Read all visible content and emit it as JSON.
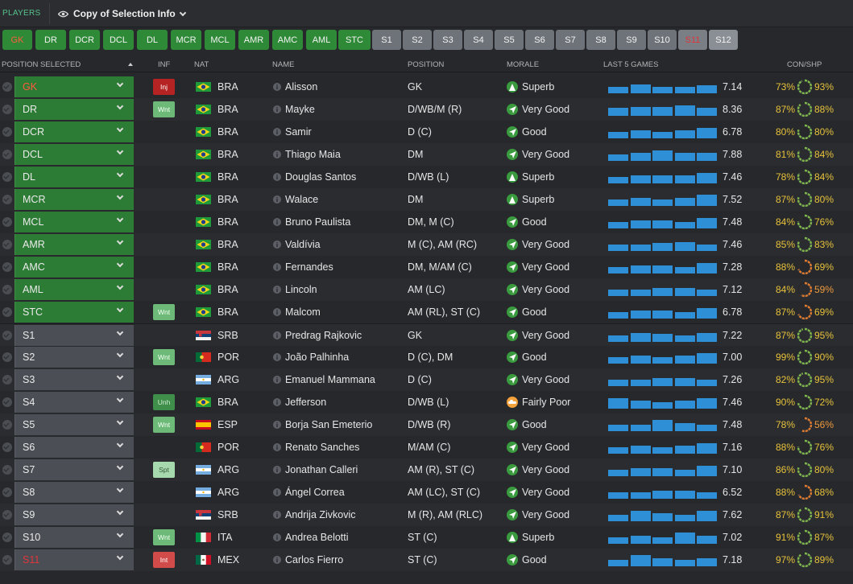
{
  "top": {
    "section": "PLAYERS",
    "view": "Copy of Selection Info"
  },
  "position_buttons": [
    {
      "label": "GK",
      "kind": "g",
      "selected": true
    },
    {
      "label": "DR",
      "kind": "g"
    },
    {
      "label": "DCR",
      "kind": "g"
    },
    {
      "label": "DCL",
      "kind": "g"
    },
    {
      "label": "DL",
      "kind": "g"
    },
    {
      "label": "MCR",
      "kind": "g"
    },
    {
      "label": "MCL",
      "kind": "g"
    },
    {
      "label": "AMR",
      "kind": "g"
    },
    {
      "label": "AMC",
      "kind": "g"
    },
    {
      "label": "AML",
      "kind": "g"
    },
    {
      "label": "STC",
      "kind": "g"
    },
    {
      "label": "S1",
      "kind": "s"
    },
    {
      "label": "S2",
      "kind": "s"
    },
    {
      "label": "S3",
      "kind": "s"
    },
    {
      "label": "S4",
      "kind": "s"
    },
    {
      "label": "S5",
      "kind": "s"
    },
    {
      "label": "S6",
      "kind": "s"
    },
    {
      "label": "S7",
      "kind": "s"
    },
    {
      "label": "S8",
      "kind": "s"
    },
    {
      "label": "S9",
      "kind": "s"
    },
    {
      "label": "S10",
      "kind": "s"
    },
    {
      "label": "S11",
      "kind": "s",
      "selected": true
    },
    {
      "label": "S12",
      "kind": "s",
      "dark": true
    }
  ],
  "columns": {
    "position": "POSITION SELECTED",
    "inf": "INF",
    "nat": "NAT",
    "name": "NAME",
    "pos": "POSITION",
    "morale": "MORALE",
    "last5": "LAST 5 GAMES",
    "conshp": "CON/SHP"
  },
  "colors": {
    "green": "#2f8a38",
    "sub": "#6e737a",
    "bar": "#2e8fd6",
    "ring_green": "#7fb84a",
    "ring_orange": "#e07b2e"
  },
  "players": [
    {
      "slot": "GK",
      "kind": "g",
      "red": true,
      "inf": "Inj",
      "inf_type": "inj",
      "flag": "bra",
      "nat": "BRA",
      "name": "Alisson",
      "pos": "GK",
      "morale": "Superb",
      "morale_icon": "superb",
      "last5": [
        6.6,
        7.2,
        6.9,
        7.0,
        7.1
      ],
      "avg": "7.14",
      "con": "73%",
      "con_tone": "yel",
      "shp": "93%",
      "shp_val": 0.93
    },
    {
      "slot": "DR",
      "kind": "g",
      "inf": "Wnt",
      "inf_type": "wnt",
      "flag": "bra",
      "nat": "BRA",
      "name": "Mayke",
      "pos": "D/WB/M (R)",
      "morale": "Very Good",
      "morale_icon": "good",
      "last5": [
        7.1,
        7.2,
        7.2,
        7.3,
        7.1
      ],
      "avg": "8.36",
      "con": "87%",
      "con_tone": "yel",
      "shp": "88%",
      "shp_val": 0.88
    },
    {
      "slot": "DCR",
      "kind": "g",
      "inf": "",
      "flag": "bra",
      "nat": "BRA",
      "name": "Samir",
      "pos": "D (C)",
      "morale": "Good",
      "morale_icon": "good",
      "last5": [
        7.0,
        7.1,
        7.0,
        7.1,
        7.3
      ],
      "avg": "6.78",
      "con": "80%",
      "con_tone": "yel",
      "shp": "80%",
      "shp_val": 0.8
    },
    {
      "slot": "DCL",
      "kind": "g",
      "inf": "",
      "flag": "bra",
      "nat": "BRA",
      "name": "Thiago Maia",
      "pos": "DM",
      "morale": "Very Good",
      "morale_icon": "good",
      "last5": [
        7.0,
        7.1,
        7.3,
        7.1,
        7.1
      ],
      "avg": "7.88",
      "con": "81%",
      "con_tone": "yel",
      "shp": "84%",
      "shp_val": 0.84
    },
    {
      "slot": "DL",
      "kind": "g",
      "inf": "",
      "flag": "bra",
      "nat": "BRA",
      "name": "Douglas Santos",
      "pos": "D/WB (L)",
      "morale": "Superb",
      "morale_icon": "superb",
      "last5": [
        7.0,
        7.1,
        7.1,
        7.1,
        7.3
      ],
      "avg": "7.46",
      "con": "78%",
      "con_tone": "yel",
      "shp": "84%",
      "shp_val": 0.84
    },
    {
      "slot": "MCR",
      "kind": "g",
      "inf": "",
      "flag": "bra",
      "nat": "BRA",
      "name": "Walace",
      "pos": "DM",
      "morale": "Superb",
      "morale_icon": "superb",
      "last5": [
        7.0,
        7.1,
        7.0,
        7.1,
        7.4
      ],
      "avg": "7.52",
      "con": "87%",
      "con_tone": "yel",
      "shp": "80%",
      "shp_val": 0.8
    },
    {
      "slot": "MCL",
      "kind": "g",
      "inf": "",
      "flag": "bra",
      "nat": "BRA",
      "name": "Bruno Paulista",
      "pos": "DM, M (C)",
      "morale": "Good",
      "morale_icon": "good",
      "last5": [
        7.0,
        7.1,
        7.1,
        7.0,
        7.3
      ],
      "avg": "7.48",
      "con": "84%",
      "con_tone": "yel",
      "shp": "76%",
      "shp_val": 0.76
    },
    {
      "slot": "AMR",
      "kind": "g",
      "inf": "",
      "flag": "bra",
      "nat": "BRA",
      "name": "Valdívia",
      "pos": "M (C), AM (RC)",
      "morale": "Very Good",
      "morale_icon": "good",
      "last5": [
        7.0,
        7.0,
        7.1,
        7.2,
        7.0
      ],
      "avg": "7.46",
      "con": "85%",
      "con_tone": "yel",
      "shp": "83%",
      "shp_val": 0.83
    },
    {
      "slot": "AMC",
      "kind": "g",
      "inf": "",
      "flag": "bra",
      "nat": "BRA",
      "name": "Fernandes",
      "pos": "DM, M/AM (C)",
      "morale": "Very Good",
      "morale_icon": "good",
      "last5": [
        7.0,
        7.1,
        7.1,
        7.0,
        7.3
      ],
      "avg": "7.28",
      "con": "88%",
      "con_tone": "yel",
      "shp": "69%",
      "shp_val": 0.69
    },
    {
      "slot": "AML",
      "kind": "g",
      "inf": "",
      "flag": "bra",
      "nat": "BRA",
      "name": "Lincoln",
      "pos": "AM (LC)",
      "morale": "Very Good",
      "morale_icon": "good",
      "last5": [
        7.0,
        7.0,
        7.1,
        7.1,
        7.0
      ],
      "avg": "7.12",
      "con": "84%",
      "con_tone": "yel",
      "shp": "59%",
      "shp_val": 0.59,
      "shp_tone": "ora"
    },
    {
      "slot": "STC",
      "kind": "g",
      "inf": "Wnt",
      "inf_type": "wnt",
      "flag": "bra",
      "nat": "BRA",
      "name": "Malcom",
      "pos": "AM (RL), ST (C)",
      "morale": "Good",
      "morale_icon": "good",
      "last5": [
        7.0,
        7.1,
        7.1,
        7.0,
        7.3
      ],
      "avg": "6.78",
      "con": "87%",
      "con_tone": "yel",
      "shp": "69%",
      "shp_val": 0.69
    },
    {
      "slot": "S1",
      "kind": "s",
      "inf": "",
      "flag": "srb",
      "nat": "SRB",
      "name": "Predrag Rajkovic",
      "pos": "GK",
      "morale": "Very Good",
      "morale_icon": "good",
      "last5": [
        7.0,
        7.2,
        7.1,
        7.0,
        7.2
      ],
      "avg": "7.22",
      "con": "87%",
      "con_tone": "yel",
      "shp": "95%",
      "shp_val": 0.95
    },
    {
      "slot": "S2",
      "kind": "s",
      "inf": "Wnt",
      "inf_type": "wnt",
      "flag": "por",
      "nat": "POR",
      "name": "João Palhinha",
      "pos": "D (C), DM",
      "morale": "Good",
      "morale_icon": "good",
      "last5": [
        7.0,
        7.1,
        7.0,
        7.1,
        7.3
      ],
      "avg": "7.00",
      "con": "99%",
      "con_tone": "yel",
      "shp": "90%",
      "shp_val": 0.9
    },
    {
      "slot": "S3",
      "kind": "s",
      "inf": "",
      "flag": "arg",
      "nat": "ARG",
      "name": "Emanuel Mammana",
      "pos": "D (C)",
      "morale": "Very Good",
      "morale_icon": "good",
      "last5": [
        7.0,
        7.0,
        7.1,
        7.1,
        7.0
      ],
      "avg": "7.26",
      "con": "82%",
      "con_tone": "yel",
      "shp": "95%",
      "shp_val": 0.95
    },
    {
      "slot": "S4",
      "kind": "s",
      "inf": "Unh",
      "inf_type": "unh",
      "flag": "bra",
      "nat": "BRA",
      "name": "Jefferson",
      "pos": "D/WB (L)",
      "morale": "Fairly Poor",
      "morale_icon": "poor",
      "last5": [
        7.3,
        7.1,
        7.0,
        7.1,
        7.3
      ],
      "avg": "7.46",
      "con": "90%",
      "con_tone": "yel",
      "shp": "72%",
      "shp_val": 0.72
    },
    {
      "slot": "S5",
      "kind": "s",
      "inf": "Wnt",
      "inf_type": "wnt",
      "flag": "esp",
      "nat": "ESP",
      "name": "Borja San Emeterio",
      "pos": "D/WB (R)",
      "morale": "Good",
      "morale_icon": "good",
      "last5": [
        6.9,
        7.0,
        7.4,
        7.1,
        7.0
      ],
      "avg": "7.48",
      "con": "78%",
      "con_tone": "yel",
      "shp": "56%",
      "shp_val": 0.56,
      "shp_tone": "ora"
    },
    {
      "slot": "S6",
      "kind": "s",
      "inf": "",
      "flag": "por",
      "nat": "POR",
      "name": "Renato Sanches",
      "pos": "M/AM (C)",
      "morale": "Very Good",
      "morale_icon": "good",
      "last5": [
        7.0,
        7.1,
        7.0,
        7.1,
        7.3
      ],
      "avg": "7.16",
      "con": "88%",
      "con_tone": "yel",
      "shp": "76%",
      "shp_val": 0.76
    },
    {
      "slot": "S7",
      "kind": "s",
      "inf": "Spt",
      "inf_type": "spt",
      "flag": "arg",
      "nat": "ARG",
      "name": "Jonathan Calleri",
      "pos": "AM (R), ST (C)",
      "morale": "Very Good",
      "morale_icon": "good",
      "last5": [
        7.0,
        7.1,
        7.1,
        7.0,
        7.3
      ],
      "avg": "7.10",
      "con": "86%",
      "con_tone": "yel",
      "shp": "80%",
      "shp_val": 0.8
    },
    {
      "slot": "S8",
      "kind": "s",
      "inf": "",
      "flag": "arg",
      "nat": "ARG",
      "name": "Ángel Correa",
      "pos": "AM (LC), ST (C)",
      "morale": "Very Good",
      "morale_icon": "good",
      "last5": [
        7.0,
        7.0,
        7.1,
        7.1,
        7.0
      ],
      "avg": "6.52",
      "con": "88%",
      "con_tone": "yel",
      "shp": "68%",
      "shp_val": 0.68
    },
    {
      "slot": "S9",
      "kind": "s",
      "inf": "",
      "flag": "srb",
      "nat": "SRB",
      "name": "Andrija Zivkovic",
      "pos": "M (R), AM (RLC)",
      "morale": "Very Good",
      "morale_icon": "good",
      "last5": [
        7.0,
        7.3,
        7.1,
        7.0,
        7.3
      ],
      "avg": "7.62",
      "con": "87%",
      "con_tone": "yel",
      "shp": "91%",
      "shp_val": 0.91
    },
    {
      "slot": "S10",
      "kind": "s",
      "inf": "Wnt",
      "inf_type": "wnt",
      "flag": "ita",
      "nat": "ITA",
      "name": "Andrea Belotti",
      "pos": "ST (C)",
      "morale": "Superb",
      "morale_icon": "superb",
      "last5": [
        6.8,
        7.1,
        6.9,
        7.4,
        7.1
      ],
      "avg": "7.02",
      "con": "91%",
      "con_tone": "yel",
      "shp": "87%",
      "shp_val": 0.87
    },
    {
      "slot": "S11",
      "kind": "s",
      "red": true,
      "inf": "Int",
      "inf_type": "int",
      "flag": "mex",
      "nat": "MEX",
      "name": "Carlos Fierro",
      "pos": "ST (C)",
      "morale": "Good",
      "morale_icon": "good",
      "last5": [
        7.0,
        7.4,
        7.1,
        7.0,
        7.1
      ],
      "avg": "7.18",
      "con": "97%",
      "con_tone": "yel",
      "shp": "89%",
      "shp_val": 0.89
    }
  ]
}
